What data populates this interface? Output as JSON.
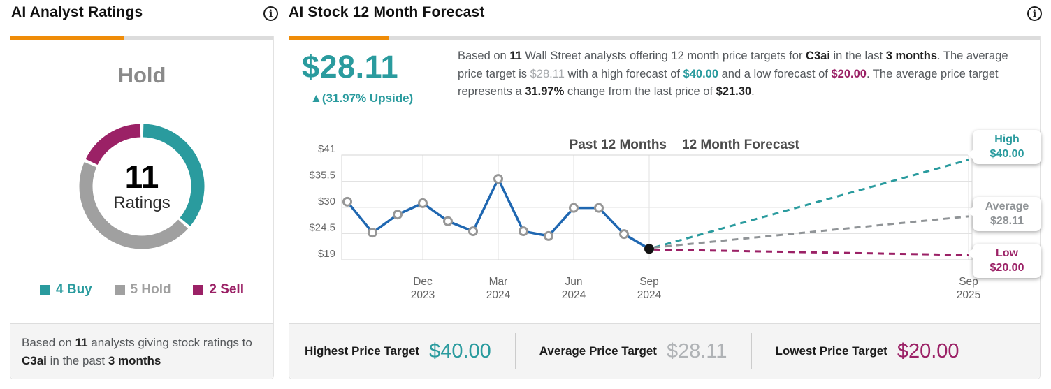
{
  "icons": {
    "info_glyph": "i"
  },
  "colors": {
    "teal": "#2A9B9E",
    "gray": "#A0A0A0",
    "purple": "#9B2166",
    "blue": "#1F67B1",
    "orange": "#EF8C08"
  },
  "left_panel": {
    "title": "AI Analyst Ratings",
    "consensus": "Hold",
    "total_count": "11",
    "total_label": "Ratings",
    "ratings": [
      {
        "name": "Buy",
        "count": 4,
        "label": "4 Buy",
        "color": "#2A9B9E"
      },
      {
        "name": "Hold",
        "count": 5,
        "label": "5 Hold",
        "color": "#A0A0A0"
      },
      {
        "name": "Sell",
        "count": 2,
        "label": "2 Sell",
        "color": "#9B2166"
      }
    ],
    "footnote_segments": [
      {
        "t": "Based on "
      },
      {
        "t": "11",
        "s": "b"
      },
      {
        "t": " analysts giving stock ratings to "
      },
      {
        "t": "C3ai",
        "s": "b"
      },
      {
        "t": "  in the past "
      },
      {
        "t": "3 months",
        "s": "b"
      }
    ]
  },
  "right_panel": {
    "title": "AI Stock 12 Month Forecast",
    "average_price_target": "$28.11",
    "upside_label": "▲(31.97% Upside)",
    "description_segments": [
      {
        "t": "Based on "
      },
      {
        "t": "11",
        "s": "b"
      },
      {
        "t": " Wall Street analysts offering 12 month price targets for "
      },
      {
        "t": "C3ai",
        "s": "b"
      },
      {
        "t": " in the last "
      },
      {
        "t": "3 months",
        "s": "b"
      },
      {
        "t": ". The average price target is "
      },
      {
        "t": "$28.11",
        "s": "muted"
      },
      {
        "t": " with a high forecast of "
      },
      {
        "t": "$40.00",
        "s": "high"
      },
      {
        "t": " and a low forecast of "
      },
      {
        "t": "$20.00",
        "s": "low"
      },
      {
        "t": ". The average price target represents a "
      },
      {
        "t": "31.97%",
        "s": "b"
      },
      {
        "t": " change from the last price of "
      },
      {
        "t": "$21.30",
        "s": "b"
      },
      {
        "t": "."
      }
    ],
    "stats": [
      {
        "label": "Highest Price Target",
        "value": "$40.00",
        "color": "#2A9B9E"
      },
      {
        "label": "Average Price Target",
        "value": "$28.11",
        "color": "#b0b3b6"
      },
      {
        "label": "Lowest Price Target",
        "value": "$20.00",
        "color": "#9B2166"
      }
    ]
  },
  "chart_data": {
    "type": "line",
    "section_labels": [
      "Past 12 Months",
      "12 Month Forecast"
    ],
    "x": [
      "Sep 2023",
      "Oct 2023",
      "Nov 2023",
      "Dec 2023",
      "Jan 2024",
      "Feb 2024",
      "Mar 2024",
      "Apr 2024",
      "May 2024",
      "Jun 2024",
      "Jul 2024",
      "Aug 2024",
      "Sep 2024"
    ],
    "series": [
      {
        "name": "Stock price (past 12 months)",
        "color": "#1F67B1",
        "values": [
          31.2,
          24.7,
          28.5,
          30.9,
          27.1,
          25.0,
          36.0,
          25.0,
          24.0,
          29.9,
          29.9,
          24.4,
          21.3
        ]
      }
    ],
    "last_price": 21.3,
    "forecast": [
      {
        "name": "High",
        "value": 40.0,
        "display": "$40.00",
        "color": "#2A9B9E"
      },
      {
        "name": "Average",
        "value": 28.11,
        "display": "$28.11",
        "color": "#909497"
      },
      {
        "name": "Low",
        "value": 20.0,
        "display": "$20.00",
        "color": "#9B2166"
      }
    ],
    "y_ticks": [
      {
        "label": "$41",
        "value": 41
      },
      {
        "label": "$35.5",
        "value": 35.5
      },
      {
        "label": "$30",
        "value": 30
      },
      {
        "label": "$24.5",
        "value": 24.5
      },
      {
        "label": "$19",
        "value": 19
      }
    ],
    "x_ticks": [
      {
        "line1": "Dec",
        "line2": "2023",
        "index": 3
      },
      {
        "line1": "Mar",
        "line2": "2024",
        "index": 6
      },
      {
        "line1": "Jun",
        "line2": "2024",
        "index": 9
      },
      {
        "line1": "Sep",
        "line2": "2024",
        "index": 12
      }
    ],
    "forecast_end_tick": {
      "line1": "Sep",
      "line2": "2025"
    },
    "ylim": [
      19,
      41
    ],
    "grid": true,
    "legend_position": "none"
  }
}
